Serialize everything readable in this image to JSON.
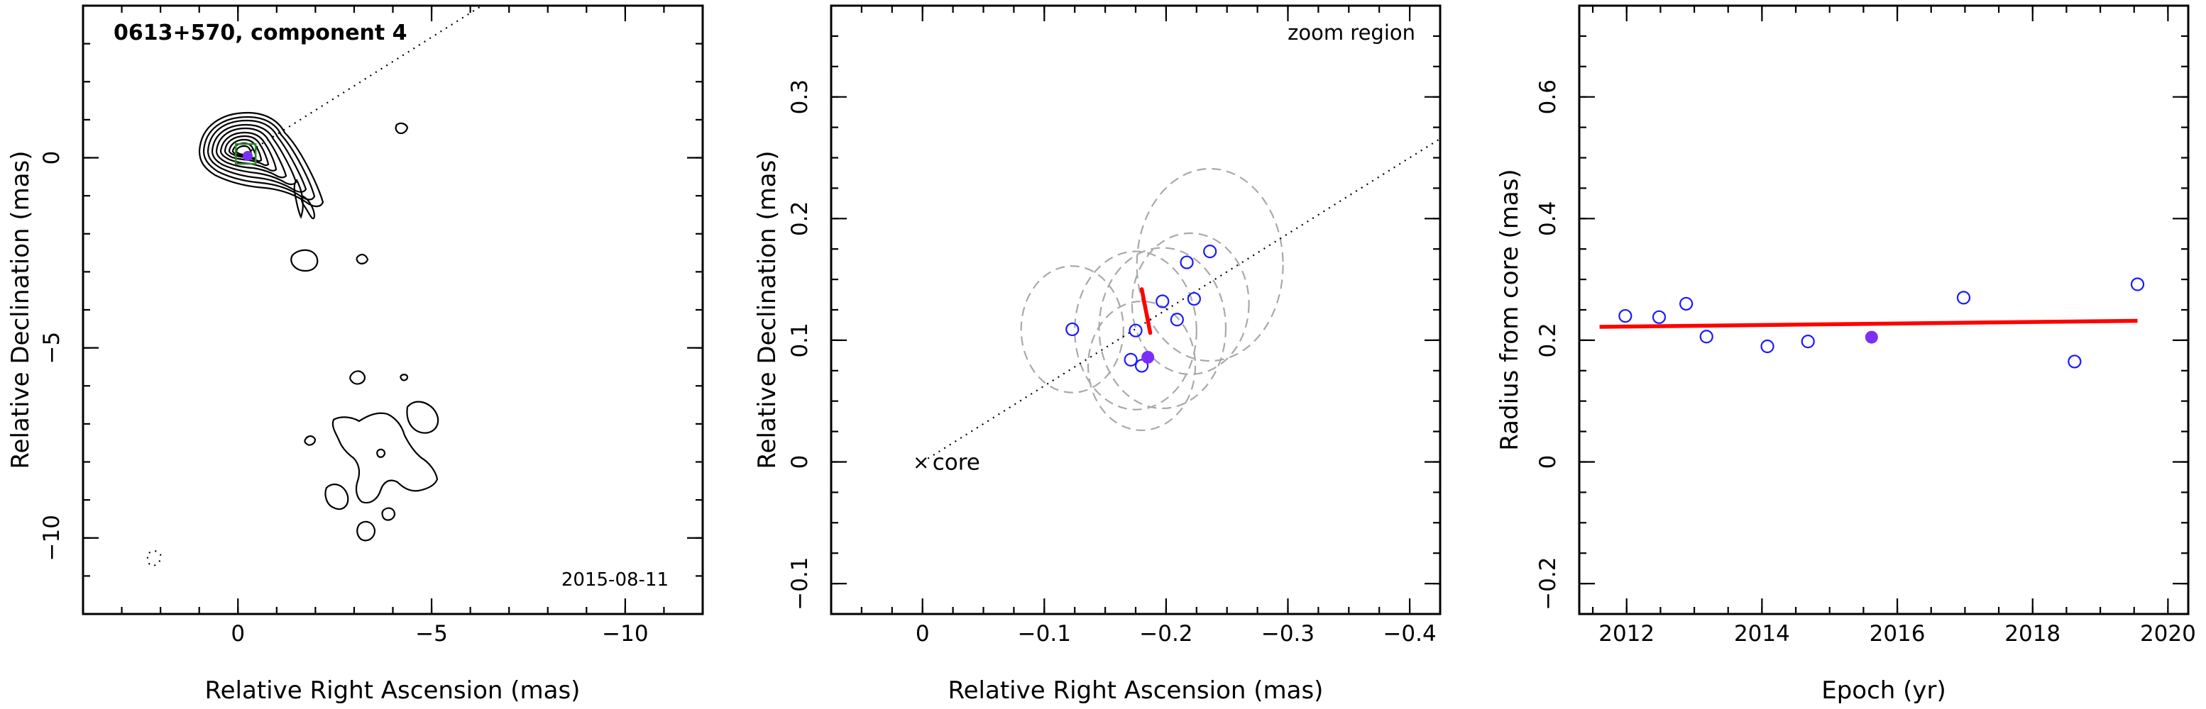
{
  "chart_data": [
    {
      "type": "contour",
      "title": "0613+570, component 4",
      "epoch_label": "2015-08-11",
      "xlabel": "Relative Right Ascension (mas)",
      "ylabel": "Relative Declination (mas)",
      "xlim": [
        4,
        -12
      ],
      "ylim": [
        -12,
        4
      ],
      "xticks": [
        0,
        -5,
        -10
      ],
      "xtick_labels": [
        "0",
        "−5",
        "−10"
      ],
      "yticks": [
        0,
        -5,
        -10
      ],
      "ytick_labels": [
        "0",
        "−5",
        "−10"
      ],
      "marker": {
        "x": -0.2,
        "y": 0.1,
        "shape": "square",
        "color": "#2e8b2e"
      },
      "peak": {
        "x": -0.25,
        "y": 0.05,
        "color": "#7b2ff7"
      },
      "direction_line": {
        "from": [
          -0.2,
          0.1
        ],
        "to": [
          -6.3,
          4
        ]
      }
    },
    {
      "type": "scatter",
      "title": "zoom region",
      "core_label": "core",
      "xlabel": "Relative Right Ascension (mas)",
      "ylabel": "Relative Declination (mas)",
      "xlim": [
        0.075,
        -0.425
      ],
      "ylim": [
        -0.125,
        0.375
      ],
      "xticks": [
        0,
        -0.1,
        -0.2,
        -0.3,
        -0.4
      ],
      "xtick_labels": [
        "0",
        "−0.1",
        "−0.2",
        "−0.3",
        "−0.4"
      ],
      "yticks": [
        -0.1,
        0,
        0.1,
        0.2,
        0.3
      ],
      "ytick_labels": [
        "−0.1",
        "0",
        "0.1",
        "0.2",
        "0.3"
      ],
      "core": {
        "x": 0,
        "y": 0
      },
      "direction_line": {
        "slope": -0.625
      },
      "points": [
        {
          "x": -0.123,
          "y": 0.109
        },
        {
          "x": -0.175,
          "y": 0.108
        },
        {
          "x": -0.171,
          "y": 0.084
        },
        {
          "x": -0.18,
          "y": 0.079
        },
        {
          "x": -0.197,
          "y": 0.132
        },
        {
          "x": -0.209,
          "y": 0.117
        },
        {
          "x": -0.217,
          "y": 0.164
        },
        {
          "x": -0.223,
          "y": 0.134
        },
        {
          "x": -0.236,
          "y": 0.173
        }
      ],
      "highlight_point": {
        "x": -0.185,
        "y": 0.086,
        "color": "#7b2ff7"
      },
      "ellipses": [
        {
          "x": -0.123,
          "y": 0.109,
          "rx": 0.042,
          "ry": 0.052
        },
        {
          "x": -0.175,
          "y": 0.108,
          "rx": 0.05,
          "ry": 0.065
        },
        {
          "x": -0.18,
          "y": 0.079,
          "rx": 0.044,
          "ry": 0.053
        },
        {
          "x": -0.197,
          "y": 0.11,
          "rx": 0.052,
          "ry": 0.066
        },
        {
          "x": -0.22,
          "y": 0.13,
          "rx": 0.048,
          "ry": 0.058
        },
        {
          "x": -0.236,
          "y": 0.162,
          "rx": 0.06,
          "ry": 0.079
        }
      ],
      "motion_segment": {
        "from": [
          -0.187,
          0.106
        ],
        "to": [
          -0.18,
          0.142
        ],
        "color": "#ff0000"
      }
    },
    {
      "type": "scatter",
      "xlabel": "Epoch (yr)",
      "ylabel": "Radius from core (mas)",
      "xlim": [
        2011.3,
        2020.3
      ],
      "ylim": [
        -0.25,
        0.75
      ],
      "xticks": [
        2012,
        2014,
        2016,
        2018,
        2020
      ],
      "xtick_labels": [
        "2012",
        "2014",
        "2016",
        "2018",
        "2020"
      ],
      "yticks": [
        -0.2,
        0,
        0.2,
        0.4,
        0.6
      ],
      "ytick_labels": [
        "−0.2",
        "0",
        "0.2",
        "0.4",
        "0.6"
      ],
      "points": [
        {
          "x": 2011.98,
          "y": 0.24
        },
        {
          "x": 2012.48,
          "y": 0.238
        },
        {
          "x": 2012.88,
          "y": 0.26
        },
        {
          "x": 2013.18,
          "y": 0.206
        },
        {
          "x": 2014.08,
          "y": 0.19
        },
        {
          "x": 2014.68,
          "y": 0.198
        },
        {
          "x": 2016.98,
          "y": 0.27
        },
        {
          "x": 2018.62,
          "y": 0.165
        },
        {
          "x": 2019.55,
          "y": 0.292
        }
      ],
      "highlight_point": {
        "x": 2015.62,
        "y": 0.205,
        "color": "#7b2ff7"
      },
      "fit_line": {
        "x": [
          2011.6,
          2019.55
        ],
        "y": [
          0.222,
          0.232
        ],
        "color": "#ff0000"
      }
    }
  ]
}
